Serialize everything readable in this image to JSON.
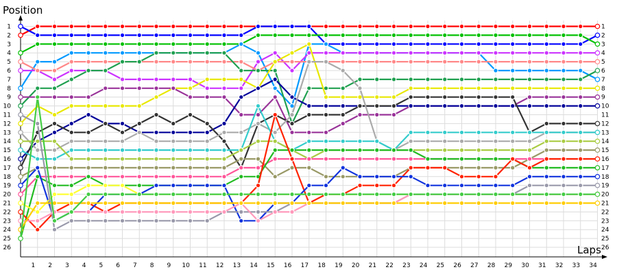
{
  "chart_data": {
    "type": "line",
    "title": "",
    "xlabel": "Laps",
    "ylabel": "Position",
    "x": [
      0,
      1,
      2,
      3,
      4,
      5,
      6,
      7,
      8,
      9,
      10,
      11,
      12,
      13,
      14,
      15,
      16,
      17,
      18,
      19,
      20,
      21,
      22,
      23,
      24,
      25,
      26,
      27,
      28,
      29,
      30,
      31,
      32,
      33,
      34
    ],
    "x_tick_labels": [
      1,
      2,
      3,
      4,
      5,
      6,
      7,
      8,
      9,
      10,
      11,
      12,
      13,
      14,
      15,
      16,
      17,
      18,
      19,
      20,
      21,
      22,
      23,
      24,
      25,
      26,
      27,
      28,
      29,
      30,
      31,
      32,
      33,
      34
    ],
    "y_tick_labels": [
      1,
      2,
      3,
      4,
      5,
      6,
      7,
      8,
      9,
      10,
      11,
      12,
      13,
      14,
      15,
      16,
      17,
      18,
      19,
      20,
      21,
      22,
      23,
      24,
      25,
      26
    ],
    "ylim": [
      1,
      26
    ],
    "grid": true,
    "y_axis_inverted": true,
    "marker": "circle",
    "series": [
      {
        "color": "#ff0000",
        "values": [
          2,
          1,
          1,
          1,
          1,
          1,
          1,
          1,
          1,
          1,
          1,
          1,
          1,
          1,
          1,
          1,
          1,
          1,
          1,
          1,
          1,
          1,
          1,
          1,
          1,
          1,
          1,
          1,
          1,
          1,
          1,
          1,
          1,
          1,
          1
        ]
      },
      {
        "color": "#0000ff",
        "values": [
          1,
          2,
          2,
          2,
          2,
          2,
          2,
          2,
          2,
          2,
          2,
          2,
          2,
          2,
          1,
          1,
          1,
          1,
          3,
          3,
          3,
          3,
          3,
          3,
          3,
          3,
          3,
          3,
          3,
          3,
          3,
          3,
          3,
          3,
          2
        ]
      },
      {
        "color": "#00c000",
        "values": [
          4,
          3,
          3,
          3,
          3,
          3,
          3,
          3,
          3,
          3,
          3,
          3,
          3,
          3,
          2,
          2,
          2,
          2,
          2,
          2,
          2,
          2,
          2,
          2,
          2,
          2,
          2,
          2,
          2,
          2,
          2,
          2,
          2,
          2,
          3
        ]
      },
      {
        "color": "#0099ff",
        "values": [
          8,
          5,
          5,
          4,
          4,
          4,
          4,
          4,
          4,
          4,
          4,
          4,
          4,
          3,
          4,
          8,
          10,
          3,
          3,
          4,
          4,
          4,
          4,
          4,
          4,
          4,
          4,
          4,
          6,
          6,
          6,
          6,
          6,
          6,
          7
        ]
      },
      {
        "color": "#cc33ff",
        "values": [
          6,
          6,
          7,
          6,
          6,
          6,
          7,
          7,
          7,
          7,
          7,
          8,
          8,
          8,
          5,
          4,
          6,
          4,
          4,
          4,
          4,
          4,
          4,
          4,
          4,
          4,
          4,
          4,
          4,
          4,
          4,
          4,
          4,
          4,
          4
        ]
      },
      {
        "color": "#ff8888",
        "values": [
          5,
          6,
          6,
          5,
          5,
          5,
          5,
          5,
          5,
          5,
          5,
          5,
          5,
          5,
          6,
          5,
          5,
          5,
          5,
          5,
          5,
          5,
          5,
          5,
          5,
          5,
          5,
          5,
          5,
          5,
          5,
          5,
          5,
          5,
          5
        ]
      },
      {
        "color": "#20a050",
        "values": [
          10,
          8,
          8,
          7,
          6,
          6,
          5,
          5,
          4,
          4,
          4,
          4,
          4,
          6,
          6,
          6,
          12,
          8,
          8,
          8,
          7,
          7,
          7,
          7,
          7,
          7,
          7,
          7,
          7,
          7,
          7,
          7,
          7,
          7,
          6
        ]
      },
      {
        "color": "#e8e800",
        "values": [
          12,
          10,
          11,
          10,
          10,
          10,
          10,
          10,
          9,
          8,
          8,
          7,
          7,
          7,
          8,
          5,
          4,
          3,
          9,
          9,
          9,
          9,
          9,
          8,
          8,
          8,
          8,
          8,
          8,
          8,
          8,
          8,
          8,
          8,
          8
        ]
      },
      {
        "color": "#993399",
        "values": [
          9,
          9,
          9,
          9,
          9,
          8,
          8,
          8,
          8,
          8,
          9,
          9,
          9,
          11,
          11,
          9,
          13,
          13,
          13,
          12,
          11,
          11,
          11,
          10,
          10,
          10,
          10,
          10,
          10,
          10,
          9,
          9,
          9,
          9,
          9
        ]
      },
      {
        "color": "#000099",
        "values": [
          16,
          14,
          13,
          12,
          11,
          12,
          12,
          13,
          13,
          13,
          13,
          13,
          12,
          9,
          8,
          7,
          9,
          10,
          10,
          10,
          10,
          10,
          10,
          10,
          10,
          10,
          10,
          10,
          10,
          10,
          10,
          10,
          10,
          10,
          10
        ]
      },
      {
        "color": "#333333",
        "values": [
          17,
          13,
          12,
          13,
          13,
          12,
          13,
          12,
          11,
          12,
          11,
          12,
          14,
          17,
          12,
          11,
          12,
          11,
          11,
          11,
          10,
          10,
          10,
          9,
          9,
          9,
          9,
          9,
          9,
          9,
          13,
          12,
          12,
          12,
          12
        ]
      },
      {
        "color": "#aaaaaa",
        "values": [
          13,
          15,
          15,
          14,
          14,
          14,
          14,
          13,
          14,
          14,
          14,
          14,
          13,
          13,
          12,
          13,
          11,
          5,
          5,
          6,
          8,
          14,
          15,
          14,
          14,
          14,
          14,
          14,
          14,
          14,
          14,
          13,
          13,
          13,
          13
        ]
      },
      {
        "color": "#33cccc",
        "values": [
          15,
          16,
          16,
          15,
          15,
          15,
          15,
          15,
          15,
          15,
          15,
          15,
          15,
          15,
          10,
          14,
          15,
          14,
          14,
          14,
          14,
          14,
          15,
          13,
          13,
          13,
          13,
          13,
          13,
          13,
          13,
          13,
          13,
          13,
          13
        ]
      },
      {
        "color": "#aacc44",
        "values": [
          14,
          14,
          14,
          16,
          16,
          16,
          16,
          16,
          16,
          16,
          16,
          16,
          16,
          15,
          14,
          14,
          15,
          16,
          15,
          15,
          15,
          15,
          15,
          15,
          15,
          15,
          15,
          15,
          15,
          15,
          15,
          14,
          14,
          14,
          14
        ]
      },
      {
        "color": "#999966",
        "values": [
          18,
          17,
          17,
          17,
          17,
          17,
          17,
          17,
          17,
          17,
          17,
          17,
          17,
          16,
          16,
          18,
          17,
          17,
          18,
          18,
          18,
          18,
          18,
          17,
          17,
          17,
          17,
          17,
          17,
          17,
          16,
          15,
          15,
          15,
          15
        ]
      },
      {
        "color": "#ff5599",
        "values": [
          20,
          18,
          18,
          18,
          18,
          18,
          18,
          18,
          18,
          18,
          18,
          18,
          18,
          17,
          17,
          16,
          16,
          16,
          16,
          16,
          16,
          16,
          16,
          16,
          16,
          16,
          16,
          16,
          16,
          16,
          16,
          16,
          16,
          16,
          16
        ]
      },
      {
        "color": "#22bb22",
        "values": [
          25,
          18,
          19,
          19,
          18,
          19,
          19,
          19,
          19,
          19,
          19,
          19,
          19,
          18,
          18,
          15,
          15,
          15,
          15,
          15,
          15,
          15,
          15,
          15,
          16,
          16,
          16,
          16,
          16,
          16,
          17,
          17,
          17,
          17,
          17
        ]
      },
      {
        "color": "#ff2200",
        "values": [
          22,
          24,
          22,
          21,
          21,
          22,
          21,
          21,
          21,
          21,
          21,
          21,
          21,
          21,
          19,
          11,
          16,
          21,
          20,
          20,
          19,
          19,
          19,
          17,
          17,
          17,
          18,
          18,
          18,
          16,
          17,
          16,
          16,
          16,
          16
        ]
      },
      {
        "color": "#1133dd",
        "values": [
          19,
          17,
          23,
          22,
          22,
          20,
          20,
          20,
          19,
          19,
          19,
          19,
          19,
          23,
          23,
          21,
          21,
          19,
          19,
          17,
          18,
          18,
          18,
          18,
          19,
          19,
          19,
          19,
          19,
          19,
          18,
          18,
          18,
          18,
          18
        ]
      },
      {
        "color": "#ffff33",
        "values": [
          21,
          22,
          20,
          20,
          19,
          19,
          19,
          20,
          20,
          20,
          20,
          20,
          20,
          20,
          20,
          20,
          20,
          20,
          20,
          20,
          20,
          20,
          20,
          20,
          20,
          20,
          20,
          20,
          20,
          20,
          20,
          20,
          20,
          20,
          20
        ]
      },
      {
        "color": "#9999aa",
        "values": [
          11,
          12,
          24,
          23,
          23,
          23,
          23,
          23,
          23,
          23,
          23,
          23,
          22,
          22,
          22,
          22,
          21,
          21,
          21,
          21,
          21,
          21,
          21,
          20,
          20,
          20,
          20,
          20,
          20,
          20,
          19,
          19,
          19,
          19,
          19
        ]
      },
      {
        "color": "#ff99bb",
        "values": [
          23,
          23,
          22,
          22,
          22,
          22,
          22,
          22,
          22,
          22,
          22,
          22,
          22,
          21,
          23,
          22,
          22,
          21,
          21,
          21,
          21,
          21,
          21,
          20,
          20,
          20,
          20,
          20,
          20,
          20,
          20,
          20,
          20,
          20,
          20
        ]
      },
      {
        "color": "#ffcc00",
        "values": [
          24,
          21,
          21,
          21,
          21,
          21,
          21,
          21,
          21,
          21,
          21,
          21,
          21,
          21,
          21,
          21,
          21,
          21,
          21,
          21,
          21,
          21,
          21,
          21,
          21,
          21,
          21,
          21,
          21,
          21,
          21,
          21,
          21,
          21,
          21
        ]
      },
      {
        "color": "#44cc44",
        "values": [
          25,
          9,
          23,
          22,
          20,
          20,
          20,
          20,
          20,
          20,
          20,
          20,
          20,
          20,
          20,
          20,
          20,
          20,
          20,
          20,
          20,
          20,
          20,
          20,
          20,
          20,
          20,
          20,
          20,
          20,
          20,
          20,
          20,
          20,
          20
        ]
      }
    ]
  }
}
